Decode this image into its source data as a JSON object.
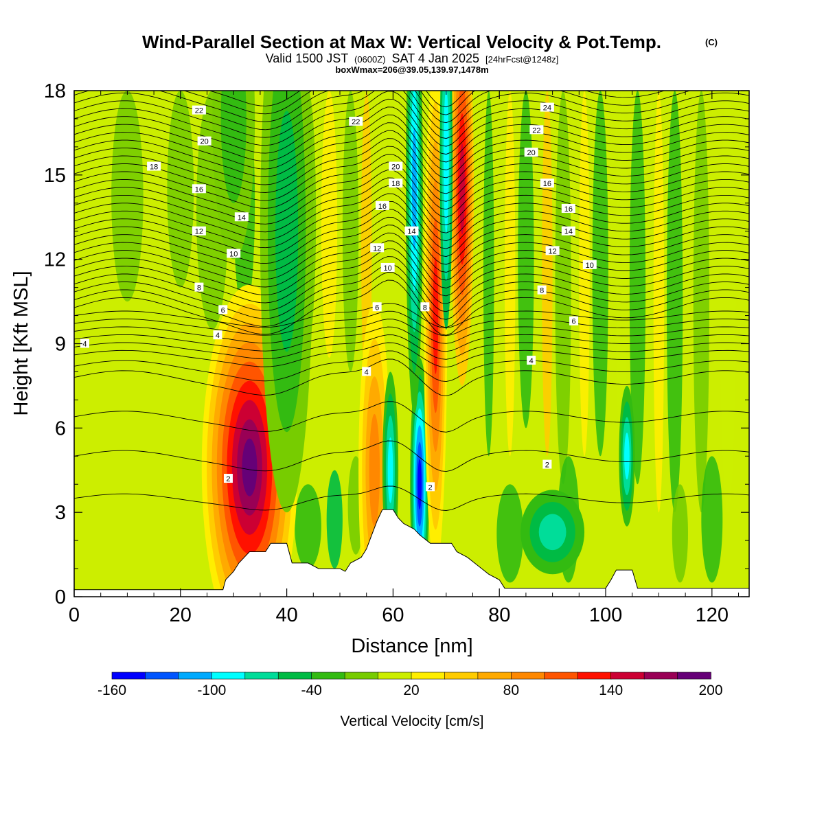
{
  "chart_data": {
    "type": "heatmap",
    "title": "Wind-Parallel Section at Max W: Vertical Velocity & Pot.Temp.",
    "title_units": "(C)",
    "subtitle_valid": "Valid 1500 JST",
    "subtitle_zulu": "(0600Z)",
    "subtitle_date": "SAT 4 Jan 2025",
    "subtitle_fcst": "[24hrFcst@1248z]",
    "subtitle2": "boxWmax=206@39.05,139.97,1478m",
    "xlabel": "Distance [nm]",
    "ylabel": "Height [Kft MSL]",
    "xlim": [
      0,
      127
    ],
    "ylim": [
      0,
      18
    ],
    "x_ticks": [
      "0",
      "20",
      "40",
      "60",
      "80",
      "100",
      "120"
    ],
    "y_ticks": [
      "0",
      "3",
      "6",
      "9",
      "12",
      "15",
      "18"
    ],
    "colorbar": {
      "label": "Vertical Velocity [cm/s]",
      "tick_labels": [
        "-160",
        "-100",
        "-40",
        "20",
        "80",
        "140",
        "200"
      ],
      "colors": [
        "#0000ff",
        "#0055ff",
        "#00aaff",
        "#00ffff",
        "#00dd99",
        "#00bb44",
        "#33bb11",
        "#77cc00",
        "#ccee00",
        "#ffee00",
        "#ffcc00",
        "#ffaa00",
        "#ff8800",
        "#ff5500",
        "#ff1100",
        "#cc0033",
        "#990055",
        "#660077"
      ]
    },
    "updraft_columns": [
      {
        "x": 33,
        "z": 4.5,
        "w": 200
      },
      {
        "x": 57,
        "z": 4.0,
        "w": 90
      },
      {
        "x": 68,
        "z": 10.0,
        "w": 140
      },
      {
        "x": 73,
        "z": 14.5,
        "w": 150
      }
    ],
    "downdraft_columns": [
      {
        "x": 65,
        "z": 4.0,
        "w": -160
      },
      {
        "x": 64,
        "z": 15.0,
        "w": -110
      },
      {
        "x": 70,
        "z": 16.5,
        "w": -100
      },
      {
        "x": 59,
        "z": 4.5,
        "w": -90
      }
    ],
    "contour_labels": [
      {
        "text": "22",
        "x": 23.5,
        "z": 17.3
      },
      {
        "text": "20",
        "x": 24.5,
        "z": 16.2
      },
      {
        "text": "18",
        "x": 15.0,
        "z": 15.3
      },
      {
        "text": "16",
        "x": 23.5,
        "z": 14.5
      },
      {
        "text": "14",
        "x": 31.5,
        "z": 13.5
      },
      {
        "text": "12",
        "x": 23.5,
        "z": 13.0
      },
      {
        "text": "10",
        "x": 30.0,
        "z": 12.2
      },
      {
        "text": "8",
        "x": 23.5,
        "z": 11.0
      },
      {
        "text": "6",
        "x": 28.0,
        "z": 10.2
      },
      {
        "text": "4",
        "x": 27.0,
        "z": 9.3
      },
      {
        "text": "4",
        "x": 2.0,
        "z": 9.0
      },
      {
        "text": "2",
        "x": 29.0,
        "z": 4.2
      },
      {
        "text": "22",
        "x": 53.0,
        "z": 16.9
      },
      {
        "text": "20",
        "x": 60.5,
        "z": 15.3
      },
      {
        "text": "18",
        "x": 60.5,
        "z": 14.7
      },
      {
        "text": "16",
        "x": 58.0,
        "z": 13.9
      },
      {
        "text": "14",
        "x": 63.5,
        "z": 13.0
      },
      {
        "text": "12",
        "x": 57.0,
        "z": 12.4
      },
      {
        "text": "10",
        "x": 59.0,
        "z": 11.7
      },
      {
        "text": "6",
        "x": 57.0,
        "z": 10.3
      },
      {
        "text": "8",
        "x": 66.0,
        "z": 10.3
      },
      {
        "text": "4",
        "x": 55.0,
        "z": 8.0
      },
      {
        "text": "2",
        "x": 67.0,
        "z": 3.9
      },
      {
        "text": "24",
        "x": 89.0,
        "z": 17.4
      },
      {
        "text": "22",
        "x": 87.0,
        "z": 16.6
      },
      {
        "text": "20",
        "x": 86.0,
        "z": 15.8
      },
      {
        "text": "16",
        "x": 89.0,
        "z": 14.7
      },
      {
        "text": "16",
        "x": 93.0,
        "z": 13.8
      },
      {
        "text": "14",
        "x": 93.0,
        "z": 13.0
      },
      {
        "text": "12",
        "x": 90.0,
        "z": 12.3
      },
      {
        "text": "10",
        "x": 97.0,
        "z": 11.8
      },
      {
        "text": "8",
        "x": 88.0,
        "z": 10.9
      },
      {
        "text": "6",
        "x": 94.0,
        "z": 9.8
      },
      {
        "text": "4",
        "x": 86.0,
        "z": 8.4
      },
      {
        "text": "2",
        "x": 89.0,
        "z": 4.7
      }
    ],
    "terrain": [
      [
        0,
        0.25
      ],
      [
        28,
        0.25
      ],
      [
        28.5,
        0.6
      ],
      [
        30,
        0.9
      ],
      [
        31,
        1.2
      ],
      [
        32,
        1.4
      ],
      [
        33,
        1.6
      ],
      [
        36,
        1.6
      ],
      [
        37,
        1.9
      ],
      [
        40,
        1.9
      ],
      [
        41,
        1.2
      ],
      [
        44,
        1.2
      ],
      [
        46,
        1.0
      ],
      [
        50,
        1.0
      ],
      [
        51,
        0.9
      ],
      [
        52,
        1.2
      ],
      [
        54,
        1.4
      ],
      [
        55,
        1.7
      ],
      [
        56,
        2.2
      ],
      [
        57,
        2.7
      ],
      [
        58,
        3.1
      ],
      [
        60,
        3.1
      ],
      [
        61,
        2.8
      ],
      [
        62,
        2.6
      ],
      [
        64,
        2.4
      ],
      [
        65,
        2.2
      ],
      [
        67,
        1.9
      ],
      [
        71,
        1.9
      ],
      [
        72,
        1.6
      ],
      [
        74,
        1.4
      ],
      [
        76,
        1.1
      ],
      [
        78,
        0.8
      ],
      [
        80,
        0.6
      ],
      [
        81,
        0.3
      ],
      [
        100,
        0.3
      ],
      [
        101,
        0.6
      ],
      [
        102,
        0.95
      ],
      [
        105,
        0.95
      ],
      [
        106,
        0.3
      ],
      [
        127,
        0.3
      ]
    ]
  }
}
